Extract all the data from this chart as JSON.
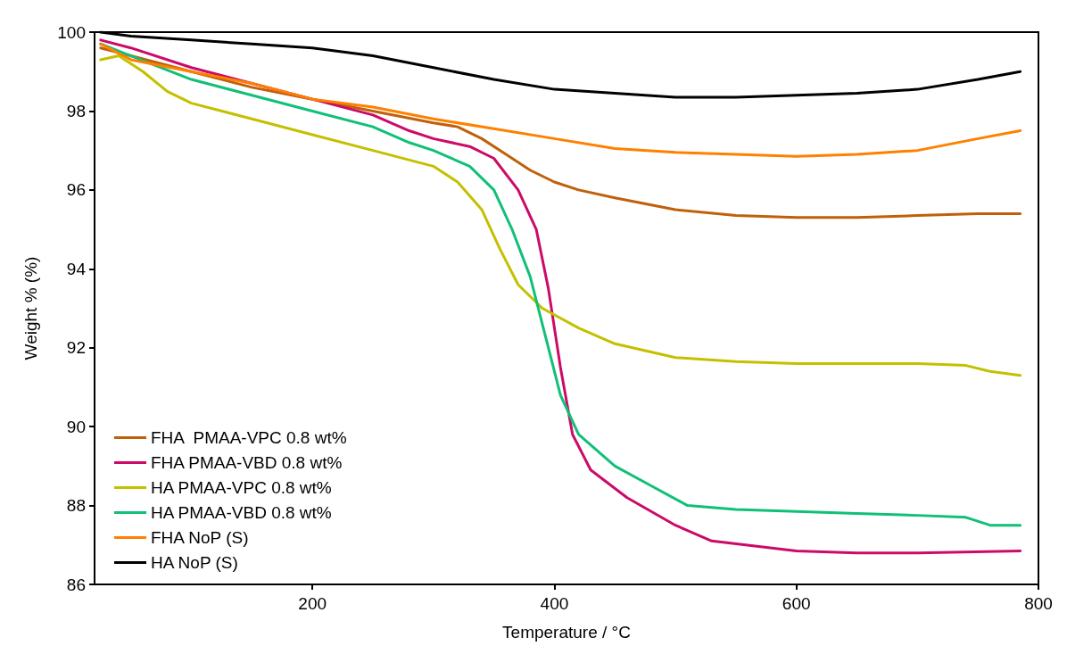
{
  "chart_data": {
    "type": "line",
    "xlabel": "Temperature / °C",
    "ylabel": "Weight % (%)",
    "xlim": [
      20,
      800
    ],
    "xticks": [
      200,
      400,
      600,
      800
    ],
    "ylim": [
      86,
      100
    ],
    "yticks": [
      86,
      88,
      90,
      92,
      94,
      96,
      98,
      100
    ],
    "legend": "bottom left",
    "series": [
      {
        "name": "FHA  PMAA-VPC 0.8 wt%",
        "color": "#c0600a",
        "x": [
          25,
          50,
          100,
          150,
          200,
          250,
          300,
          320,
          340,
          360,
          380,
          400,
          420,
          450,
          500,
          550,
          600,
          650,
          700,
          750,
          785
        ],
        "values": [
          99.6,
          99.4,
          99.0,
          98.6,
          98.3,
          98.0,
          97.7,
          97.6,
          97.3,
          96.9,
          96.5,
          96.2,
          96.0,
          95.8,
          95.5,
          95.35,
          95.3,
          95.3,
          95.35,
          95.4,
          95.4
        ]
      },
      {
        "name": "FHA PMAA-VBD 0.8 wt%",
        "color": "#cc0a68",
        "x": [
          25,
          50,
          100,
          150,
          200,
          250,
          280,
          300,
          330,
          350,
          370,
          385,
          395,
          405,
          415,
          430,
          460,
          500,
          530,
          600,
          650,
          700,
          785
        ],
        "values": [
          99.8,
          99.6,
          99.1,
          98.7,
          98.3,
          97.9,
          97.5,
          97.3,
          97.1,
          96.8,
          96.0,
          95.0,
          93.5,
          91.5,
          89.8,
          88.9,
          88.2,
          87.5,
          87.1,
          86.85,
          86.8,
          86.8,
          86.85
        ]
      },
      {
        "name": "HA PMAA-VPC 0.8 wt%",
        "color": "#c4c000",
        "x": [
          25,
          40,
          60,
          80,
          100,
          150,
          200,
          250,
          300,
          320,
          340,
          355,
          370,
          390,
          420,
          450,
          500,
          550,
          600,
          650,
          700,
          740,
          760,
          785
        ],
        "values": [
          99.3,
          99.4,
          99.0,
          98.5,
          98.2,
          97.8,
          97.4,
          97.0,
          96.6,
          96.2,
          95.5,
          94.5,
          93.6,
          93.0,
          92.5,
          92.1,
          91.75,
          91.65,
          91.6,
          91.6,
          91.6,
          91.55,
          91.4,
          91.3
        ]
      },
      {
        "name": "HA PMAA-VBD 0.8 wt%",
        "color": "#10c078",
        "x": [
          25,
          50,
          100,
          150,
          200,
          250,
          280,
          300,
          330,
          350,
          365,
          380,
          395,
          405,
          420,
          450,
          480,
          510,
          550,
          600,
          650,
          700,
          740,
          760,
          785
        ],
        "values": [
          99.7,
          99.4,
          98.8,
          98.4,
          98.0,
          97.6,
          97.2,
          97.0,
          96.6,
          96.0,
          95.0,
          93.8,
          92.0,
          90.8,
          89.8,
          89.0,
          88.5,
          88.0,
          87.9,
          87.85,
          87.8,
          87.75,
          87.7,
          87.5,
          87.5
        ]
      },
      {
        "name": "FHA NoP (S)",
        "color": "#ff8000",
        "x": [
          25,
          50,
          100,
          150,
          200,
          250,
          300,
          350,
          400,
          450,
          500,
          550,
          600,
          650,
          700,
          750,
          785
        ],
        "values": [
          99.7,
          99.3,
          99.0,
          98.7,
          98.3,
          98.1,
          97.8,
          97.55,
          97.3,
          97.05,
          96.95,
          96.9,
          96.85,
          96.9,
          97.0,
          97.3,
          97.5
        ]
      },
      {
        "name": "HA NoP (S)",
        "color": "#000000",
        "x": [
          25,
          50,
          100,
          150,
          200,
          250,
          300,
          350,
          400,
          450,
          500,
          550,
          600,
          650,
          700,
          750,
          785
        ],
        "values": [
          100.0,
          99.9,
          99.8,
          99.7,
          99.6,
          99.4,
          99.1,
          98.8,
          98.55,
          98.45,
          98.35,
          98.35,
          98.4,
          98.45,
          98.55,
          98.8,
          99.0
        ]
      }
    ]
  }
}
